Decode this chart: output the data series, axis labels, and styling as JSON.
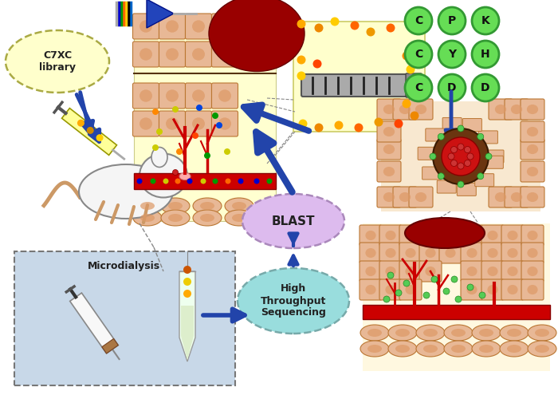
{
  "bg_color": "#ffffff",
  "c7xc_label": "C7XC\nlibrary",
  "blast_label": "BLAST",
  "hts_label": "High\nThroughput\nSequencing",
  "micro_label": "Microdialysis",
  "cpk_labels": [
    [
      "C",
      "P",
      "K"
    ],
    [
      "C",
      "Y",
      "H"
    ],
    [
      "C",
      "D",
      "D"
    ]
  ],
  "green_circle_color": "#66dd55",
  "green_circle_edge": "#339933",
  "c7xc_fill": "#ffffcc",
  "blast_fill": "#ddbbee",
  "hts_fill": "#99dddd",
  "micro_box_fill": "#c8d8e8",
  "skin_cell_color": "#e8b896",
  "skin_cell_inner": "#dd9966",
  "blood_red": "#cc0000",
  "dark_blood": "#880000",
  "arrow_blue": "#2244aa",
  "arrow_blue2": "#334499",
  "yellow_bg": "#ffffcc",
  "tissue_bg": "#ffffd0",
  "wound_bg": "#fff8e0",
  "cell_edge": "#bb7733",
  "probe_gray": "#999999",
  "probe_dark": "#555555",
  "mouse_color": "#f5f5f5",
  "mouse_edge": "#999999",
  "syringe_color": "#f8f8f8",
  "tube_color": "#f0f8f0",
  "nucleus_brown": "#7a3a10",
  "nucleus_red": "#cc1111"
}
